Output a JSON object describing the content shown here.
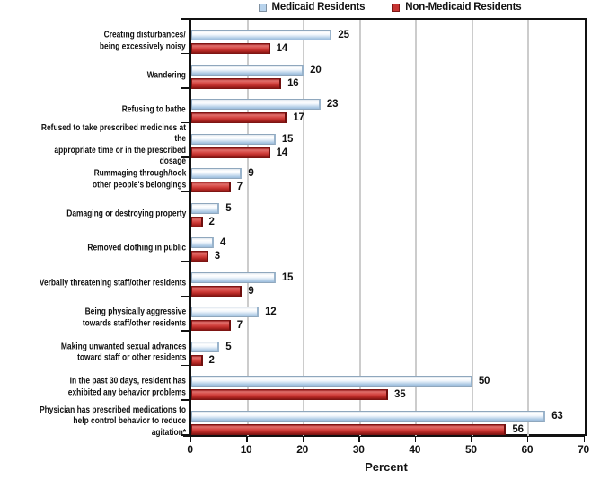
{
  "legend": {
    "items": [
      {
        "label": "Medicaid Residents",
        "color": "#b8d3ec"
      },
      {
        "label": "Non-Medicaid Residents",
        "color": "#c63432"
      }
    ]
  },
  "chart_data": {
    "type": "bar",
    "orientation": "horizontal",
    "xlabel": "Percent",
    "xlim": [
      0,
      70
    ],
    "xticks": [
      0,
      10,
      20,
      30,
      40,
      50,
      60,
      70
    ],
    "grid": true,
    "legend_position": "top",
    "categories": [
      "Creating disturbances/\nbeing excessively noisy",
      "Wandering",
      "Refusing to bathe",
      "Refused to take prescribed medicines at the\nappropriate time or in the prescribed dosage",
      "Rummaging through/took\nother people's belongings",
      "Damaging or destroying property",
      "Removed clothing in public",
      "Verbally threatening staff/other residents",
      "Being physically aggressive\ntowards staff/other residents",
      "Making unwanted sexual advances\ntoward staff or other residents",
      "In the past 30 days, resident has\nexhibited any behavior problems",
      "Physician has prescribed medications to\nhelp control behavior to reduce agitation*"
    ],
    "series": [
      {
        "name": "Medicaid Residents",
        "color": "#b8d3ec",
        "values": [
          25,
          20,
          23,
          15,
          9,
          5,
          4,
          15,
          12,
          5,
          50,
          63
        ]
      },
      {
        "name": "Non-Medicaid Residents",
        "color": "#c63432",
        "values": [
          14,
          16,
          17,
          14,
          7,
          2,
          3,
          9,
          7,
          2,
          35,
          56
        ]
      }
    ]
  }
}
